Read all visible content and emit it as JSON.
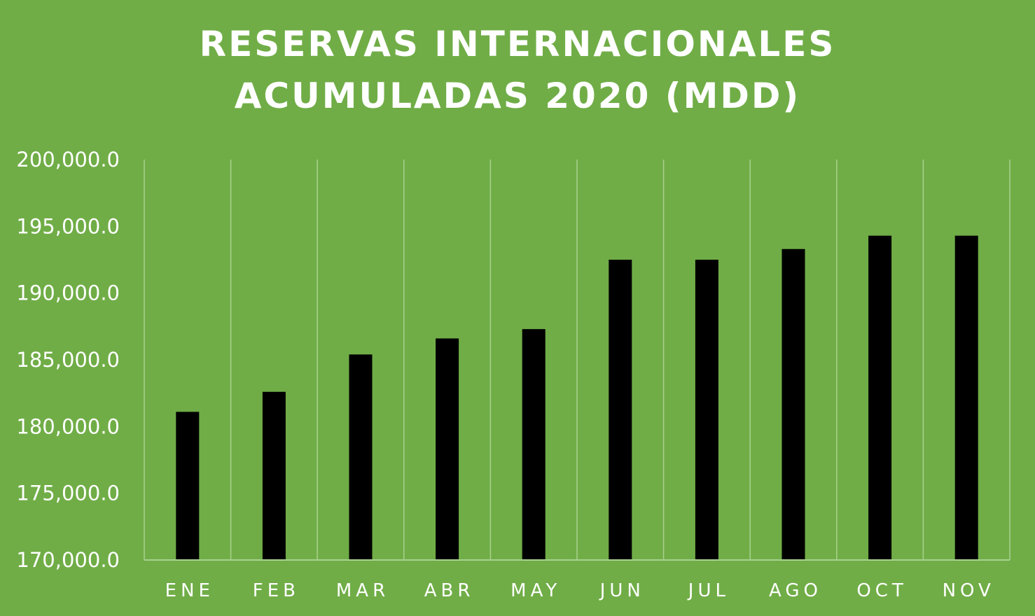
{
  "chart_data": {
    "type": "bar",
    "title_lines": [
      "RESERVAS INTERNACIONALES",
      "ACUMULADAS 2020 (MDD)"
    ],
    "categories": [
      "ENE",
      "FEB",
      "MAR",
      "ABR",
      "MAY",
      "JUN",
      "JUL",
      "AGO",
      "OCT",
      "NOV"
    ],
    "values": [
      181100,
      182600,
      185400,
      186600,
      187300,
      192500,
      192500,
      193300,
      194300,
      194300
    ],
    "ylim": [
      170000,
      200000
    ],
    "yticks": [
      "170,000.0",
      "175,000.0",
      "180,000.0",
      "185,000.0",
      "190,000.0",
      "195,000.0",
      "200,000.0"
    ],
    "grid": "vertical",
    "colors": {
      "background": "#70ad47",
      "bar": "#000000",
      "text": "#ffffff",
      "grid": "#a9d18e"
    }
  }
}
